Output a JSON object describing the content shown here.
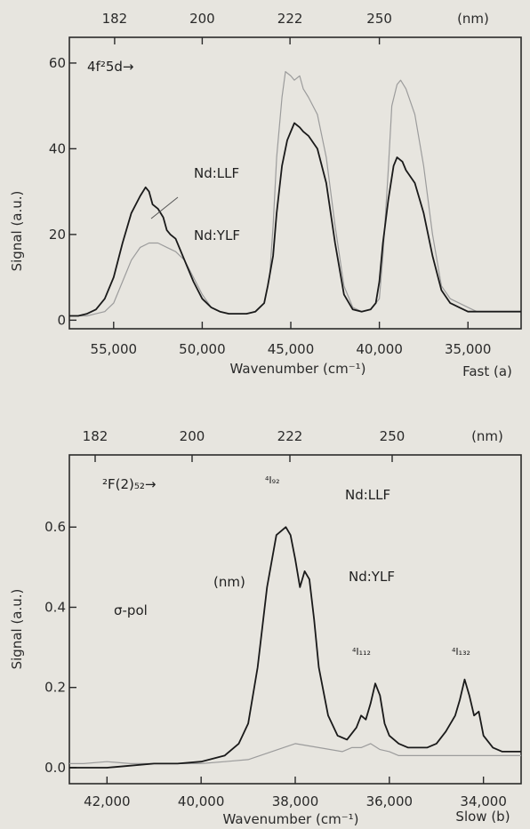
{
  "chart_data": [
    {
      "type": "line",
      "panel_label": "Fast (a)",
      "xlabel": "Wavenumber (cm⁻¹)",
      "ylabel": "Signal (a.u.)",
      "xlim": [
        57500,
        32000
      ],
      "ylim": [
        -2,
        66
      ],
      "x_ticks": [
        55000,
        50000,
        45000,
        40000,
        35000
      ],
      "x_tick_labels": [
        "55,000",
        "50,000",
        "45,000",
        "40,000",
        "35,000"
      ],
      "y_ticks": [
        0,
        20,
        40,
        60
      ],
      "y_tick_labels": [
        "0",
        "20",
        "40",
        "60"
      ],
      "top_ticks": [
        182,
        200,
        222,
        250
      ],
      "top_tick_labels": [
        "182",
        "200",
        "222",
        "250"
      ],
      "top_axis_unit": "(nm)",
      "annotations": [
        "4f²5d→",
        "Nd:LLF",
        "Nd:YLF"
      ],
      "series": [
        {
          "name": "Nd:LLF",
          "color": "#1a1a1a",
          "x": [
            57500,
            57000,
            56500,
            56000,
            55500,
            55000,
            54500,
            54000,
            53500,
            53200,
            53000,
            52800,
            52500,
            52200,
            52000,
            51800,
            51500,
            51300,
            51000,
            50500,
            50000,
            49500,
            49000,
            48500,
            48000,
            47500,
            47000,
            46500,
            46300,
            46000,
            45800,
            45500,
            45200,
            45000,
            44800,
            44500,
            44300,
            44000,
            43500,
            43000,
            42500,
            42000,
            41500,
            41000,
            40500,
            40200,
            40000,
            39800,
            39500,
            39200,
            39000,
            38700,
            38500,
            38000,
            37500,
            37000,
            36500,
            36000,
            35500,
            35000,
            34500,
            34000,
            33500,
            33000,
            32500,
            32000
          ],
          "y": [
            1,
            1,
            1.5,
            2.5,
            5,
            10,
            18,
            25,
            29,
            31,
            30,
            27,
            26,
            24,
            21,
            20,
            19,
            17,
            14,
            9,
            5,
            3,
            2,
            1.5,
            1.5,
            1.5,
            2,
            4,
            8,
            15,
            25,
            36,
            42,
            44,
            46,
            45,
            44,
            43,
            40,
            32,
            18,
            6,
            2.5,
            2,
            2.5,
            4,
            9,
            18,
            28,
            36,
            38,
            37,
            35,
            32,
            25,
            15,
            7,
            4,
            3,
            2,
            2,
            2,
            2,
            2,
            2,
            2
          ]
        },
        {
          "name": "Nd:YLF",
          "color": "#9c9c9c",
          "x": [
            57500,
            57000,
            56500,
            56000,
            55500,
            55000,
            54500,
            54000,
            53500,
            53000,
            52500,
            52000,
            51500,
            51000,
            50500,
            50000,
            49500,
            49000,
            48500,
            48000,
            47500,
            47000,
            46500,
            46200,
            46000,
            45800,
            45500,
            45300,
            45000,
            44800,
            44500,
            44300,
            44000,
            43500,
            43000,
            42500,
            42000,
            41500,
            41000,
            40500,
            40000,
            39800,
            39500,
            39300,
            39000,
            38800,
            38500,
            38000,
            37500,
            37000,
            36500,
            36000,
            35500,
            35000,
            34500,
            34000,
            33500,
            33000,
            32500,
            32000
          ],
          "y": [
            1,
            1,
            1,
            1.5,
            2,
            4,
            9,
            14,
            17,
            18,
            18,
            17,
            16,
            14,
            10,
            6,
            3,
            2,
            1.5,
            1.5,
            1.5,
            2,
            4,
            10,
            22,
            38,
            52,
            58,
            57,
            56,
            57,
            54,
            52,
            48,
            38,
            22,
            8,
            3,
            2,
            2.5,
            5,
            15,
            35,
            50,
            55,
            56,
            54,
            48,
            36,
            20,
            8,
            5,
            4,
            3,
            2,
            2,
            2,
            2,
            2,
            2
          ]
        }
      ]
    },
    {
      "type": "line",
      "panel_label": "Slow (b)",
      "xlabel": "Wavenumber (cm⁻¹)",
      "ylabel": "Signal (a.u.)",
      "xlim": [
        42800,
        33200
      ],
      "ylim": [
        -0.04,
        0.78
      ],
      "x_ticks": [
        42000,
        40000,
        38000,
        36000,
        34000
      ],
      "x_tick_labels": [
        "42,000",
        "40,000",
        "38,000",
        "36,000",
        "34,000"
      ],
      "y_ticks": [
        0.0,
        0.2,
        0.4,
        0.6
      ],
      "y_tick_labels": [
        "0.0",
        "0.2",
        "0.4",
        "0.6"
      ],
      "top_ticks": [
        182,
        200,
        222,
        250
      ],
      "top_tick_labels": [
        "182",
        "200",
        "222",
        "250"
      ],
      "top_axis_unit": "(nm)",
      "annotations": [
        "²F(2)₅₂→",
        "⁴I₉₂",
        "Nd:LLF",
        "(nm)",
        "Nd:YLF",
        "σ-pol",
        "⁴I₁₁₂",
        "⁴I₁₃₂"
      ],
      "series": [
        {
          "name": "Nd:LLF",
          "color": "#1a1a1a",
          "x": [
            42800,
            42500,
            42000,
            41500,
            41000,
            40500,
            40000,
            39500,
            39200,
            39000,
            38800,
            38600,
            38400,
            38200,
            38100,
            38000,
            37900,
            37800,
            37700,
            37600,
            37500,
            37300,
            37100,
            36900,
            36700,
            36600,
            36500,
            36400,
            36300,
            36200,
            36100,
            36000,
            35800,
            35600,
            35400,
            35200,
            35000,
            34800,
            34600,
            34500,
            34400,
            34300,
            34200,
            34100,
            34000,
            33800,
            33600,
            33400,
            33200
          ],
          "y": [
            0.0,
            0.0,
            0.0,
            0.005,
            0.01,
            0.01,
            0.015,
            0.03,
            0.06,
            0.11,
            0.25,
            0.45,
            0.58,
            0.6,
            0.58,
            0.52,
            0.45,
            0.49,
            0.47,
            0.37,
            0.25,
            0.13,
            0.08,
            0.07,
            0.1,
            0.13,
            0.12,
            0.16,
            0.21,
            0.18,
            0.11,
            0.08,
            0.06,
            0.05,
            0.05,
            0.05,
            0.06,
            0.09,
            0.13,
            0.17,
            0.22,
            0.18,
            0.13,
            0.14,
            0.08,
            0.05,
            0.04,
            0.04,
            0.04
          ]
        },
        {
          "name": "Nd:YLF",
          "color": "#9c9c9c",
          "x": [
            42800,
            42500,
            42000,
            41500,
            41000,
            40500,
            40000,
            39500,
            39000,
            38500,
            38000,
            37500,
            37000,
            36800,
            36600,
            36400,
            36200,
            36000,
            35800,
            35600,
            35400,
            35200,
            35000,
            34800,
            34600,
            34400,
            34200,
            34000,
            33800,
            33600,
            33400,
            33200
          ],
          "y": [
            0.01,
            0.01,
            0.015,
            0.01,
            0.01,
            0.01,
            0.01,
            0.015,
            0.02,
            0.04,
            0.06,
            0.05,
            0.04,
            0.05,
            0.05,
            0.06,
            0.045,
            0.04,
            0.03,
            0.03,
            0.03,
            0.03,
            0.03,
            0.03,
            0.03,
            0.03,
            0.03,
            0.03,
            0.03,
            0.03,
            0.03,
            0.03
          ]
        }
      ]
    }
  ]
}
